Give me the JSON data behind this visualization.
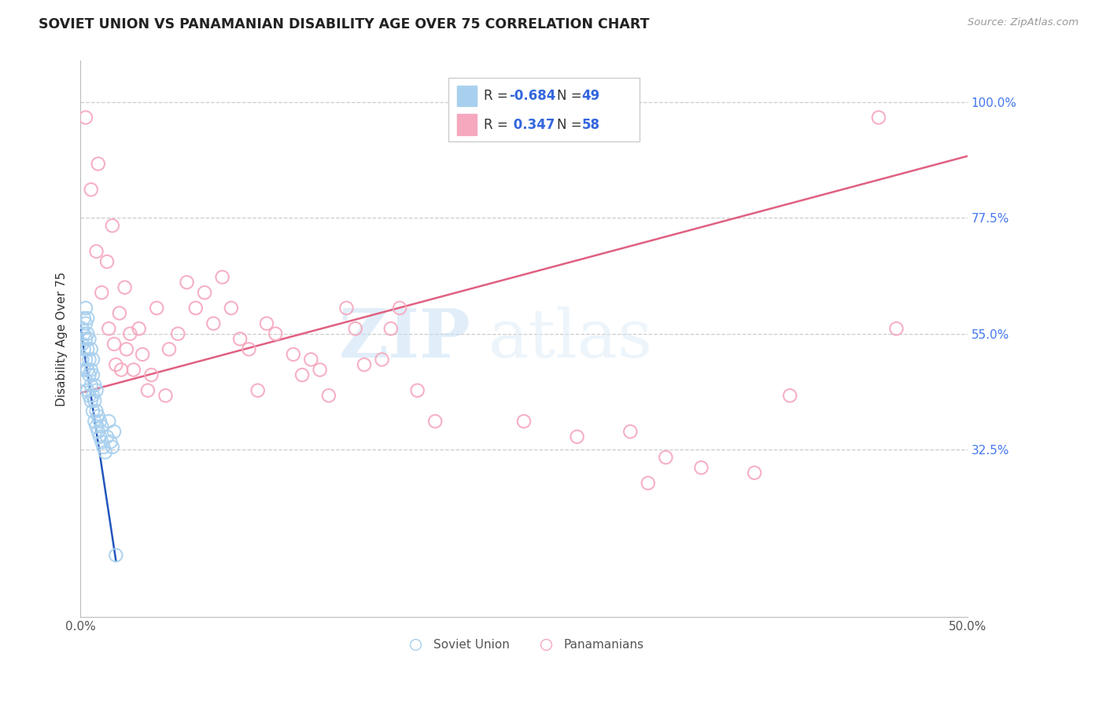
{
  "title": "SOVIET UNION VS PANAMANIAN DISABILITY AGE OVER 75 CORRELATION CHART",
  "source": "Source: ZipAtlas.com",
  "ylabel_label": "Disability Age Over 75",
  "xmin": 0.0,
  "xmax": 0.5,
  "ymin": 0.0,
  "ymax": 1.08,
  "x_ticks": [
    0.0,
    0.1,
    0.2,
    0.3,
    0.4,
    0.5
  ],
  "x_tick_labels": [
    "0.0%",
    "",
    "",
    "",
    "",
    "50.0%"
  ],
  "y_ticks": [
    0.325,
    0.55,
    0.775,
    1.0
  ],
  "y_tick_labels_right": [
    "32.5%",
    "55.0%",
    "77.5%",
    "100.0%"
  ],
  "soviet_color": "#a8d0ee",
  "panamanian_color": "#f5a8be",
  "soviet_line_color": "#2255bb",
  "panamanian_line_color": "#e06080",
  "watermark_zip": "ZIP",
  "watermark_atlas": "atlas",
  "background_color": "#ffffff",
  "grid_color": "#cccccc",
  "right_tick_color": "#4477ee",
  "soviet_x": [
    0.001,
    0.001,
    0.001,
    0.002,
    0.002,
    0.002,
    0.002,
    0.003,
    0.003,
    0.003,
    0.003,
    0.003,
    0.004,
    0.004,
    0.004,
    0.004,
    0.004,
    0.005,
    0.005,
    0.005,
    0.005,
    0.006,
    0.006,
    0.006,
    0.006,
    0.007,
    0.007,
    0.007,
    0.007,
    0.008,
    0.008,
    0.008,
    0.009,
    0.009,
    0.009,
    0.01,
    0.01,
    0.011,
    0.011,
    0.012,
    0.012,
    0.013,
    0.014,
    0.015,
    0.016,
    0.017,
    0.018,
    0.019,
    0.02
  ],
  "soviet_y": [
    0.5,
    0.53,
    0.56,
    0.48,
    0.52,
    0.55,
    0.58,
    0.46,
    0.5,
    0.54,
    0.57,
    0.6,
    0.44,
    0.48,
    0.52,
    0.55,
    0.58,
    0.43,
    0.47,
    0.5,
    0.54,
    0.42,
    0.45,
    0.48,
    0.52,
    0.4,
    0.43,
    0.47,
    0.5,
    0.38,
    0.42,
    0.45,
    0.37,
    0.4,
    0.44,
    0.36,
    0.39,
    0.35,
    0.38,
    0.34,
    0.37,
    0.33,
    0.32,
    0.35,
    0.38,
    0.34,
    0.33,
    0.36,
    0.12
  ],
  "panamanian_x": [
    0.003,
    0.006,
    0.009,
    0.01,
    0.012,
    0.015,
    0.016,
    0.018,
    0.019,
    0.02,
    0.022,
    0.023,
    0.025,
    0.026,
    0.028,
    0.03,
    0.033,
    0.035,
    0.038,
    0.04,
    0.043,
    0.048,
    0.05,
    0.055,
    0.06,
    0.065,
    0.07,
    0.075,
    0.08,
    0.085,
    0.09,
    0.095,
    0.1,
    0.105,
    0.11,
    0.12,
    0.125,
    0.13,
    0.135,
    0.14,
    0.15,
    0.155,
    0.16,
    0.17,
    0.175,
    0.18,
    0.19,
    0.2,
    0.25,
    0.28,
    0.31,
    0.32,
    0.33,
    0.35,
    0.38,
    0.4,
    0.45,
    0.46
  ],
  "panamanian_y": [
    0.97,
    0.83,
    0.71,
    0.88,
    0.63,
    0.69,
    0.56,
    0.76,
    0.53,
    0.49,
    0.59,
    0.48,
    0.64,
    0.52,
    0.55,
    0.48,
    0.56,
    0.51,
    0.44,
    0.47,
    0.6,
    0.43,
    0.52,
    0.55,
    0.65,
    0.6,
    0.63,
    0.57,
    0.66,
    0.6,
    0.54,
    0.52,
    0.44,
    0.57,
    0.55,
    0.51,
    0.47,
    0.5,
    0.48,
    0.43,
    0.6,
    0.56,
    0.49,
    0.5,
    0.56,
    0.6,
    0.44,
    0.38,
    0.38,
    0.35,
    0.36,
    0.26,
    0.31,
    0.29,
    0.28,
    0.43,
    0.97,
    0.56
  ],
  "soviet_trend_x": [
    0.0,
    0.02
  ],
  "soviet_trend_y": [
    0.565,
    0.11
  ],
  "panamanian_trend_x": [
    0.0,
    0.5
  ],
  "panamanian_trend_y": [
    0.435,
    0.895
  ]
}
